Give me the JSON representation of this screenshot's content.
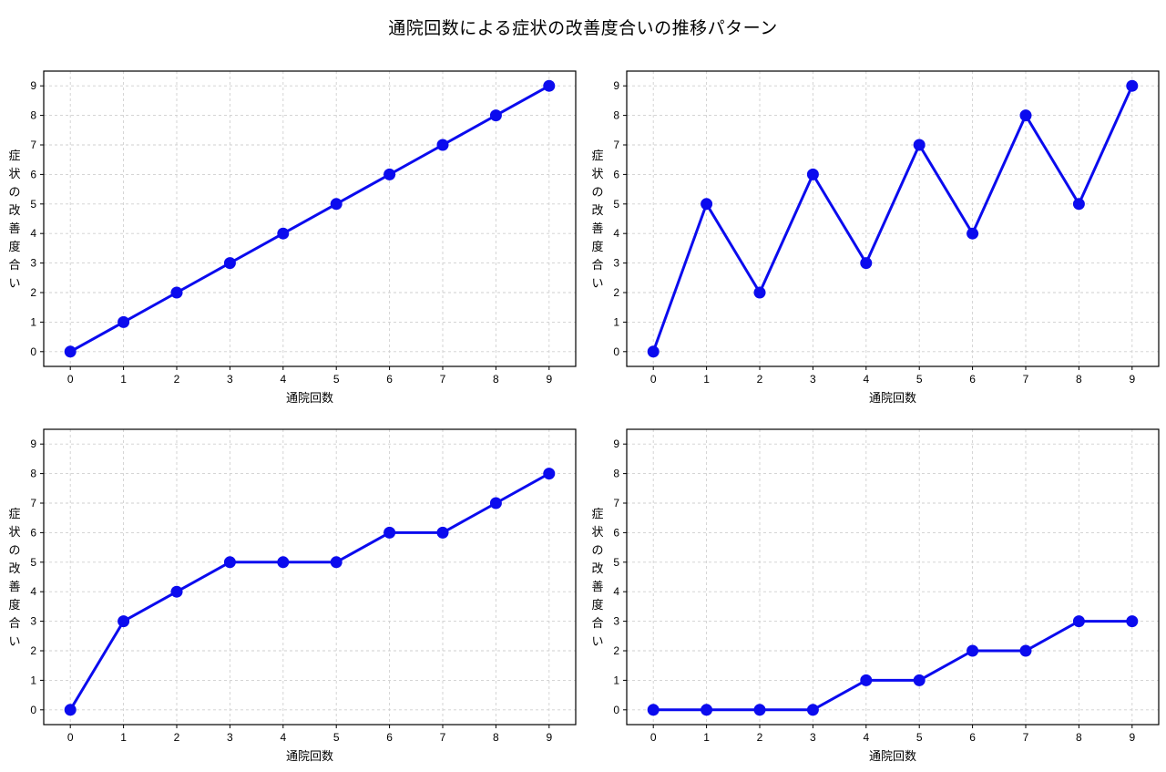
{
  "title": "通院回数による症状の改善度合いの推移パターン",
  "chart_data": [
    {
      "type": "line",
      "name": "linear-steady-improvement",
      "x": [
        0,
        1,
        2,
        3,
        4,
        5,
        6,
        7,
        8,
        9
      ],
      "y": [
        0,
        1,
        2,
        3,
        4,
        5,
        6,
        7,
        8,
        9
      ],
      "xlabel": "通院回数",
      "ylabel": "症状の改善度合い",
      "xticks": [
        0,
        1,
        2,
        3,
        4,
        5,
        6,
        7,
        8,
        9
      ],
      "yticks": [
        0,
        1,
        2,
        3,
        4,
        5,
        6,
        7,
        8,
        9
      ],
      "xlim": [
        -0.5,
        9.5
      ],
      "ylim": [
        -0.5,
        9.5
      ],
      "line_color": "#0b0bee",
      "marker": "circle",
      "grid": true,
      "grid_color": "#cfcfcf",
      "legend": "none"
    },
    {
      "type": "line",
      "name": "zigzag-fluctuating-improvement",
      "x": [
        0,
        1,
        2,
        3,
        4,
        5,
        6,
        7,
        8,
        9
      ],
      "y": [
        0,
        5,
        2,
        6,
        3,
        7,
        4,
        8,
        5,
        9
      ],
      "xlabel": "通院回数",
      "ylabel": "症状の改善度合い",
      "xticks": [
        0,
        1,
        2,
        3,
        4,
        5,
        6,
        7,
        8,
        9
      ],
      "yticks": [
        0,
        1,
        2,
        3,
        4,
        5,
        6,
        7,
        8,
        9
      ],
      "xlim": [
        -0.5,
        9.5
      ],
      "ylim": [
        -0.5,
        9.5
      ],
      "line_color": "#0b0bee",
      "marker": "circle",
      "grid": true,
      "grid_color": "#cfcfcf",
      "legend": "none"
    },
    {
      "type": "line",
      "name": "fast-then-plateau-improvement",
      "x": [
        0,
        1,
        2,
        3,
        4,
        5,
        6,
        7,
        8,
        9
      ],
      "y": [
        0,
        3,
        4,
        5,
        5,
        5,
        6,
        6,
        7,
        8
      ],
      "xlabel": "通院回数",
      "ylabel": "症状の改善度合い",
      "xticks": [
        0,
        1,
        2,
        3,
        4,
        5,
        6,
        7,
        8,
        9
      ],
      "yticks": [
        0,
        1,
        2,
        3,
        4,
        5,
        6,
        7,
        8,
        9
      ],
      "xlim": [
        -0.5,
        9.5
      ],
      "ylim": [
        -0.5,
        9.5
      ],
      "line_color": "#0b0bee",
      "marker": "circle",
      "grid": true,
      "grid_color": "#cfcfcf",
      "legend": "none"
    },
    {
      "type": "line",
      "name": "delayed-slow-improvement",
      "x": [
        0,
        1,
        2,
        3,
        4,
        5,
        6,
        7,
        8,
        9
      ],
      "y": [
        0,
        0,
        0,
        0,
        1,
        1,
        2,
        2,
        3,
        3
      ],
      "xlabel": "通院回数",
      "ylabel": "症状の改善度合い",
      "xticks": [
        0,
        1,
        2,
        3,
        4,
        5,
        6,
        7,
        8,
        9
      ],
      "yticks": [
        0,
        1,
        2,
        3,
        4,
        5,
        6,
        7,
        8,
        9
      ],
      "xlim": [
        -0.5,
        9.5
      ],
      "ylim": [
        -0.5,
        9.5
      ],
      "line_color": "#0b0bee",
      "marker": "circle",
      "grid": true,
      "grid_color": "#cfcfcf",
      "legend": "none"
    }
  ]
}
